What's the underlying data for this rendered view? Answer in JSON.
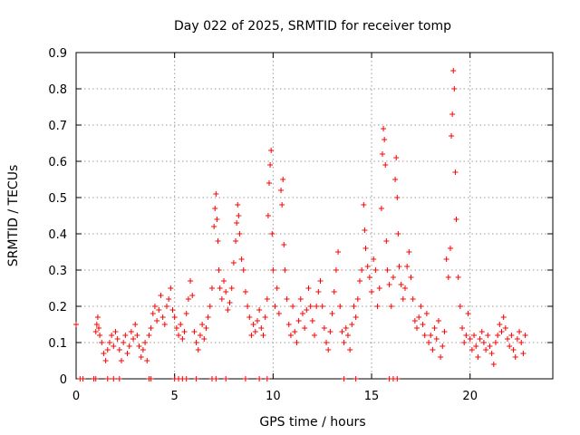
{
  "chart_data": {
    "type": "scatter",
    "title": "Day 022 of 2025, SRMTID for receiver tomp",
    "xlabel": "GPS time / hours",
    "ylabel": "SRMTID / TECUs",
    "xlim": [
      0,
      24.2
    ],
    "ylim": [
      0,
      0.9
    ],
    "xticks": [
      0,
      5,
      10,
      15,
      20
    ],
    "xtick_labels": [
      "0",
      "5",
      "10",
      "15",
      "20"
    ],
    "yticks": [
      0,
      0.1,
      0.2,
      0.3,
      0.4,
      0.5,
      0.6,
      0.7,
      0.8,
      0.9
    ],
    "ytick_labels": [
      "0",
      "0.1",
      "0.2",
      "0.3",
      "0.4",
      "0.5",
      "0.6",
      "0.7",
      "0.8",
      "0.9"
    ],
    "grid": true,
    "marker": "+",
    "series": [
      {
        "name": "SRMTID",
        "color": "#ff0000",
        "points": [
          [
            0.0,
            0.15
          ],
          [
            0.2,
            0.0
          ],
          [
            0.35,
            0.0
          ],
          [
            0.9,
            0.0
          ],
          [
            1.0,
            0.0
          ],
          [
            1.6,
            0.0
          ],
          [
            1.9,
            0.0
          ],
          [
            2.2,
            0.0
          ],
          [
            3.7,
            0.0
          ],
          [
            3.8,
            0.0
          ],
          [
            5.0,
            0.0
          ],
          [
            5.2,
            0.0
          ],
          [
            5.4,
            0.0
          ],
          [
            5.6,
            0.0
          ],
          [
            6.1,
            0.0
          ],
          [
            6.9,
            0.0
          ],
          [
            7.1,
            0.0
          ],
          [
            7.6,
            0.0
          ],
          [
            8.6,
            0.0
          ],
          [
            9.3,
            0.0
          ],
          [
            9.7,
            0.0
          ],
          [
            13.6,
            0.0
          ],
          [
            14.2,
            0.0
          ],
          [
            15.9,
            0.0
          ],
          [
            16.1,
            0.0
          ],
          [
            16.3,
            0.0
          ],
          [
            1.0,
            0.13
          ],
          [
            1.05,
            0.15
          ],
          [
            1.1,
            0.17
          ],
          [
            1.15,
            0.14
          ],
          [
            1.2,
            0.12
          ],
          [
            1.3,
            0.1
          ],
          [
            1.4,
            0.07
          ],
          [
            1.5,
            0.05
          ],
          [
            1.6,
            0.08
          ],
          [
            1.7,
            0.1
          ],
          [
            1.8,
            0.12
          ],
          [
            1.9,
            0.09
          ],
          [
            2.0,
            0.13
          ],
          [
            2.1,
            0.11
          ],
          [
            2.2,
            0.08
          ],
          [
            2.3,
            0.05
          ],
          [
            2.4,
            0.1
          ],
          [
            2.5,
            0.12
          ],
          [
            2.6,
            0.07
          ],
          [
            2.7,
            0.09
          ],
          [
            2.8,
            0.13
          ],
          [
            2.9,
            0.11
          ],
          [
            3.0,
            0.15
          ],
          [
            3.1,
            0.12
          ],
          [
            3.2,
            0.09
          ],
          [
            3.3,
            0.06
          ],
          [
            3.4,
            0.08
          ],
          [
            3.5,
            0.1
          ],
          [
            3.6,
            0.05
          ],
          [
            3.7,
            0.12
          ],
          [
            3.8,
            0.14
          ],
          [
            3.9,
            0.18
          ],
          [
            4.0,
            0.2
          ],
          [
            4.1,
            0.16
          ],
          [
            4.2,
            0.19
          ],
          [
            4.3,
            0.23
          ],
          [
            4.4,
            0.17
          ],
          [
            4.5,
            0.15
          ],
          [
            4.6,
            0.2
          ],
          [
            4.7,
            0.22
          ],
          [
            4.8,
            0.25
          ],
          [
            4.9,
            0.19
          ],
          [
            5.0,
            0.17
          ],
          [
            5.1,
            0.14
          ],
          [
            5.2,
            0.12
          ],
          [
            5.3,
            0.15
          ],
          [
            5.4,
            0.11
          ],
          [
            5.5,
            0.13
          ],
          [
            5.6,
            0.18
          ],
          [
            5.7,
            0.22
          ],
          [
            5.8,
            0.27
          ],
          [
            5.9,
            0.23
          ],
          [
            6.0,
            0.13
          ],
          [
            6.1,
            0.1
          ],
          [
            6.2,
            0.08
          ],
          [
            6.3,
            0.12
          ],
          [
            6.4,
            0.15
          ],
          [
            6.5,
            0.11
          ],
          [
            6.6,
            0.14
          ],
          [
            6.7,
            0.17
          ],
          [
            6.8,
            0.2
          ],
          [
            6.9,
            0.25
          ],
          [
            7.0,
            0.42
          ],
          [
            7.05,
            0.47
          ],
          [
            7.1,
            0.51
          ],
          [
            7.15,
            0.44
          ],
          [
            7.2,
            0.38
          ],
          [
            7.25,
            0.3
          ],
          [
            7.3,
            0.25
          ],
          [
            7.4,
            0.22
          ],
          [
            7.5,
            0.27
          ],
          [
            7.6,
            0.24
          ],
          [
            7.7,
            0.19
          ],
          [
            7.8,
            0.21
          ],
          [
            7.9,
            0.25
          ],
          [
            8.0,
            0.32
          ],
          [
            8.1,
            0.38
          ],
          [
            8.15,
            0.43
          ],
          [
            8.2,
            0.48
          ],
          [
            8.25,
            0.45
          ],
          [
            8.3,
            0.4
          ],
          [
            8.4,
            0.33
          ],
          [
            8.5,
            0.3
          ],
          [
            8.6,
            0.24
          ],
          [
            8.7,
            0.2
          ],
          [
            8.8,
            0.17
          ],
          [
            8.9,
            0.12
          ],
          [
            9.0,
            0.15
          ],
          [
            9.1,
            0.13
          ],
          [
            9.2,
            0.16
          ],
          [
            9.3,
            0.19
          ],
          [
            9.4,
            0.14
          ],
          [
            9.5,
            0.12
          ],
          [
            9.6,
            0.17
          ],
          [
            9.7,
            0.22
          ],
          [
            9.75,
            0.45
          ],
          [
            9.8,
            0.54
          ],
          [
            9.85,
            0.59
          ],
          [
            9.9,
            0.63
          ],
          [
            9.95,
            0.4
          ],
          [
            10.0,
            0.3
          ],
          [
            10.1,
            0.2
          ],
          [
            10.2,
            0.25
          ],
          [
            10.3,
            0.18
          ],
          [
            10.4,
            0.52
          ],
          [
            10.45,
            0.48
          ],
          [
            10.5,
            0.55
          ],
          [
            10.55,
            0.37
          ],
          [
            10.6,
            0.3
          ],
          [
            10.7,
            0.22
          ],
          [
            10.8,
            0.15
          ],
          [
            10.9,
            0.12
          ],
          [
            11.0,
            0.2
          ],
          [
            11.1,
            0.13
          ],
          [
            11.2,
            0.1
          ],
          [
            11.3,
            0.16
          ],
          [
            11.4,
            0.22
          ],
          [
            11.5,
            0.18
          ],
          [
            11.6,
            0.14
          ],
          [
            11.7,
            0.19
          ],
          [
            11.8,
            0.25
          ],
          [
            11.9,
            0.2
          ],
          [
            12.0,
            0.16
          ],
          [
            12.1,
            0.12
          ],
          [
            12.2,
            0.2
          ],
          [
            12.3,
            0.24
          ],
          [
            12.4,
            0.27
          ],
          [
            12.5,
            0.2
          ],
          [
            12.6,
            0.14
          ],
          [
            12.7,
            0.1
          ],
          [
            12.8,
            0.08
          ],
          [
            12.9,
            0.13
          ],
          [
            13.0,
            0.18
          ],
          [
            13.1,
            0.24
          ],
          [
            13.2,
            0.3
          ],
          [
            13.3,
            0.35
          ],
          [
            13.4,
            0.2
          ],
          [
            13.5,
            0.13
          ],
          [
            13.6,
            0.1
          ],
          [
            13.7,
            0.14
          ],
          [
            13.8,
            0.12
          ],
          [
            13.9,
            0.08
          ],
          [
            14.0,
            0.15
          ],
          [
            14.1,
            0.2
          ],
          [
            14.2,
            0.17
          ],
          [
            14.3,
            0.22
          ],
          [
            14.4,
            0.27
          ],
          [
            14.5,
            0.3
          ],
          [
            14.6,
            0.48
          ],
          [
            14.65,
            0.41
          ],
          [
            14.7,
            0.36
          ],
          [
            14.8,
            0.31
          ],
          [
            14.9,
            0.28
          ],
          [
            15.0,
            0.24
          ],
          [
            15.1,
            0.33
          ],
          [
            15.2,
            0.3
          ],
          [
            15.3,
            0.2
          ],
          [
            15.4,
            0.25
          ],
          [
            15.5,
            0.47
          ],
          [
            15.55,
            0.62
          ],
          [
            15.6,
            0.69
          ],
          [
            15.65,
            0.66
          ],
          [
            15.7,
            0.59
          ],
          [
            15.75,
            0.38
          ],
          [
            15.8,
            0.3
          ],
          [
            15.9,
            0.26
          ],
          [
            16.0,
            0.2
          ],
          [
            16.1,
            0.28
          ],
          [
            16.2,
            0.55
          ],
          [
            16.25,
            0.61
          ],
          [
            16.3,
            0.5
          ],
          [
            16.35,
            0.4
          ],
          [
            16.4,
            0.31
          ],
          [
            16.5,
            0.26
          ],
          [
            16.6,
            0.22
          ],
          [
            16.7,
            0.25
          ],
          [
            16.8,
            0.31
          ],
          [
            16.9,
            0.35
          ],
          [
            17.0,
            0.28
          ],
          [
            17.1,
            0.22
          ],
          [
            17.2,
            0.16
          ],
          [
            17.3,
            0.14
          ],
          [
            17.4,
            0.17
          ],
          [
            17.5,
            0.2
          ],
          [
            17.6,
            0.15
          ],
          [
            17.7,
            0.12
          ],
          [
            17.8,
            0.18
          ],
          [
            17.9,
            0.1
          ],
          [
            18.0,
            0.12
          ],
          [
            18.1,
            0.08
          ],
          [
            18.2,
            0.14
          ],
          [
            18.3,
            0.11
          ],
          [
            18.4,
            0.16
          ],
          [
            18.5,
            0.06
          ],
          [
            18.6,
            0.09
          ],
          [
            18.7,
            0.13
          ],
          [
            18.8,
            0.33
          ],
          [
            18.9,
            0.28
          ],
          [
            19.0,
            0.36
          ],
          [
            19.05,
            0.67
          ],
          [
            19.1,
            0.73
          ],
          [
            19.15,
            0.85
          ],
          [
            19.2,
            0.8
          ],
          [
            19.25,
            0.57
          ],
          [
            19.3,
            0.44
          ],
          [
            19.4,
            0.28
          ],
          [
            19.5,
            0.2
          ],
          [
            19.6,
            0.14
          ],
          [
            19.7,
            0.1
          ],
          [
            19.8,
            0.12
          ],
          [
            19.9,
            0.18
          ],
          [
            20.0,
            0.11
          ],
          [
            20.1,
            0.08
          ],
          [
            20.2,
            0.12
          ],
          [
            20.3,
            0.09
          ],
          [
            20.4,
            0.06
          ],
          [
            20.5,
            0.11
          ],
          [
            20.6,
            0.13
          ],
          [
            20.7,
            0.1
          ],
          [
            20.8,
            0.08
          ],
          [
            20.9,
            0.12
          ],
          [
            21.0,
            0.09
          ],
          [
            21.1,
            0.07
          ],
          [
            21.2,
            0.04
          ],
          [
            21.3,
            0.1
          ],
          [
            21.4,
            0.12
          ],
          [
            21.5,
            0.15
          ],
          [
            21.6,
            0.13
          ],
          [
            21.7,
            0.17
          ],
          [
            21.8,
            0.14
          ],
          [
            21.9,
            0.11
          ],
          [
            22.0,
            0.09
          ],
          [
            22.1,
            0.12
          ],
          [
            22.2,
            0.08
          ],
          [
            22.3,
            0.06
          ],
          [
            22.4,
            0.11
          ],
          [
            22.5,
            0.13
          ],
          [
            22.6,
            0.1
          ],
          [
            22.7,
            0.07
          ],
          [
            22.8,
            0.12
          ]
        ]
      }
    ]
  }
}
